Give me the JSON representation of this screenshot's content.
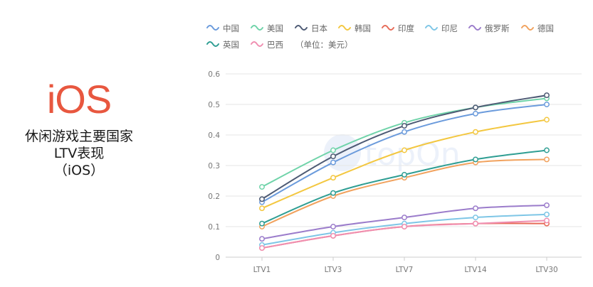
{
  "logo_text": "iOS",
  "title_lines": [
    "休闲游戏主要国家",
    "LTV表现",
    "（iOS）"
  ],
  "legend_note": "（单位：美元）",
  "watermark": "topOn",
  "chart_data": {
    "type": "line",
    "categories": [
      "LTV1",
      "LTV3",
      "LTV7",
      "LTV14",
      "LTV30"
    ],
    "ylim": [
      0,
      0.6
    ],
    "yticks": [
      "0",
      "0.1",
      "0.2",
      "0.3",
      "0.4",
      "0.5",
      "0.6"
    ],
    "grid": true,
    "legend_position": "top",
    "series": [
      {
        "name": "中国",
        "color": "#6b9bdc",
        "values": [
          0.18,
          0.31,
          0.41,
          0.47,
          0.5
        ]
      },
      {
        "name": "美国",
        "color": "#6fd3a9",
        "values": [
          0.23,
          0.35,
          0.44,
          0.49,
          0.52
        ]
      },
      {
        "name": "日本",
        "color": "#4d5a74",
        "values": [
          0.19,
          0.33,
          0.43,
          0.49,
          0.53
        ]
      },
      {
        "name": "韩国",
        "color": "#f3c740",
        "values": [
          0.16,
          0.26,
          0.35,
          0.41,
          0.45
        ]
      },
      {
        "name": "印度",
        "color": "#e76b58",
        "values": [
          0.03,
          0.07,
          0.1,
          0.11,
          0.11
        ]
      },
      {
        "name": "印尼",
        "color": "#7ec6e6",
        "values": [
          0.04,
          0.08,
          0.11,
          0.13,
          0.14
        ]
      },
      {
        "name": "俄罗斯",
        "color": "#9b7ccb",
        "values": [
          0.06,
          0.1,
          0.13,
          0.16,
          0.17
        ]
      },
      {
        "name": "德国",
        "color": "#f1a25e",
        "values": [
          0.1,
          0.2,
          0.26,
          0.31,
          0.32
        ]
      },
      {
        "name": "英国",
        "color": "#2f9e93",
        "values": [
          0.11,
          0.21,
          0.27,
          0.32,
          0.35
        ]
      },
      {
        "name": "巴西",
        "color": "#f08fb1",
        "values": [
          0.03,
          0.07,
          0.1,
          0.11,
          0.12
        ]
      }
    ]
  }
}
